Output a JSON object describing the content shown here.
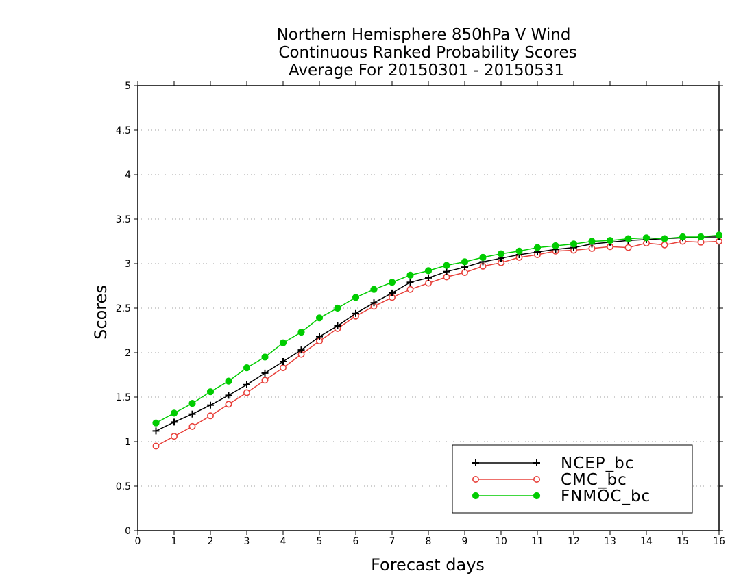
{
  "chart_data": {
    "type": "line",
    "title": [
      "Northern Hemisphere 850hPa V Wind",
      "Continuous Ranked Probability Scores",
      "Average For 20150301 - 20150531"
    ],
    "xlabel": "Forecast days",
    "ylabel": "Scores",
    "xlim": [
      0,
      16
    ],
    "ylim": [
      0,
      5
    ],
    "x_ticks": [
      "0",
      "1",
      "2",
      "3",
      "4",
      "5",
      "6",
      "7",
      "8",
      "9",
      "10",
      "11",
      "12",
      "13",
      "14",
      "15",
      "16"
    ],
    "y_ticks": [
      "0",
      "0.5",
      "1",
      "1.5",
      "2",
      "2.5",
      "3",
      "3.5",
      "4",
      "4.5",
      "5"
    ],
    "grid": "horizontal dotted",
    "legend_position": "bottom-right",
    "x": [
      0.5,
      1,
      1.5,
      2,
      2.5,
      3,
      3.5,
      4,
      4.5,
      5,
      5.5,
      6,
      6.5,
      7,
      7.5,
      8,
      8.5,
      9,
      9.5,
      10,
      10.5,
      11,
      11.5,
      12,
      12.5,
      13,
      13.5,
      14,
      14.5,
      15,
      15.5,
      16
    ],
    "series": [
      {
        "name": "NCEP_bc",
        "color": "#000000",
        "marker": "plus",
        "values": [
          1.12,
          1.22,
          1.31,
          1.41,
          1.52,
          1.64,
          1.77,
          1.9,
          2.03,
          2.18,
          2.3,
          2.44,
          2.56,
          2.67,
          2.79,
          2.84,
          2.91,
          2.96,
          3.02,
          3.06,
          3.1,
          3.13,
          3.16,
          3.18,
          3.22,
          3.24,
          3.26,
          3.27,
          3.28,
          3.29,
          3.3,
          3.3
        ]
      },
      {
        "name": "CMC_bc",
        "color": "#e8403a",
        "marker": "open-circle",
        "values": [
          0.95,
          1.06,
          1.17,
          1.29,
          1.42,
          1.55,
          1.69,
          1.83,
          1.98,
          2.13,
          2.27,
          2.41,
          2.52,
          2.62,
          2.71,
          2.78,
          2.85,
          2.9,
          2.97,
          3.01,
          3.07,
          3.1,
          3.14,
          3.15,
          3.17,
          3.19,
          3.18,
          3.23,
          3.21,
          3.25,
          3.24,
          3.25
        ]
      },
      {
        "name": "FNMOC_bc",
        "color": "#00cc00",
        "marker": "filled-circle",
        "values": [
          1.21,
          1.32,
          1.43,
          1.56,
          1.68,
          1.83,
          1.95,
          2.11,
          2.23,
          2.39,
          2.5,
          2.62,
          2.71,
          2.79,
          2.87,
          2.92,
          2.98,
          3.02,
          3.07,
          3.11,
          3.14,
          3.18,
          3.2,
          3.22,
          3.25,
          3.26,
          3.28,
          3.29,
          3.28,
          3.3,
          3.3,
          3.32
        ]
      }
    ]
  }
}
